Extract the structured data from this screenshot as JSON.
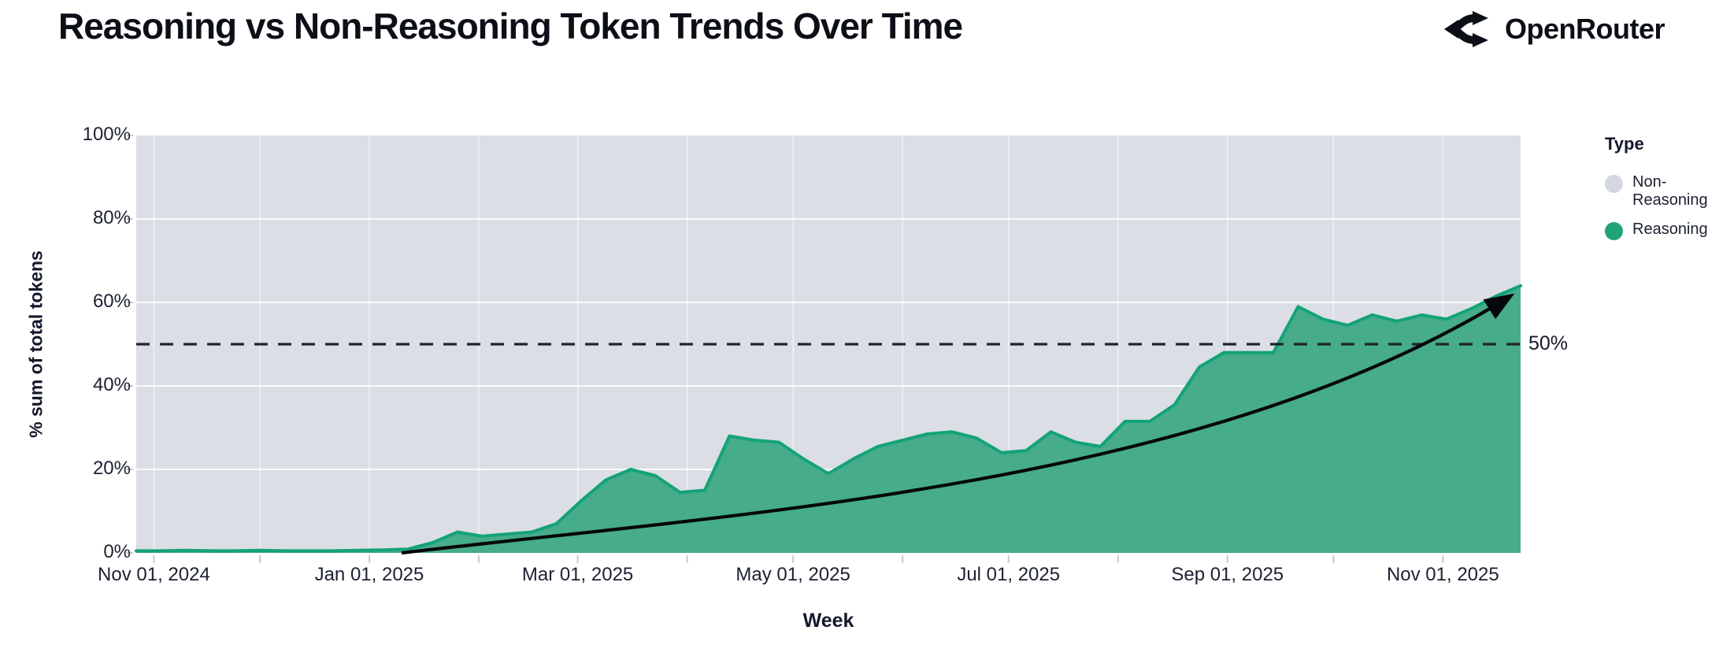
{
  "header": {
    "title": "Reasoning vs Non-Reasoning Token Trends Over Time",
    "brand": "OpenRouter"
  },
  "legend": {
    "title": "Type",
    "items": [
      {
        "label": "Non-Reasoning",
        "color": "#d3d7de"
      },
      {
        "label": "Reasoning",
        "color": "#22a278"
      }
    ]
  },
  "annotations": {
    "fifty_line_label": "50%",
    "trend_arrow": "accelerating growth arrow"
  },
  "chart_data": {
    "type": "area",
    "variant": "stacked-100-percent",
    "title": "Reasoning vs Non-Reasoning Token Trends Over Time",
    "xlabel": "Week",
    "ylabel": "% sum of total tokens",
    "ylim": [
      0,
      100
    ],
    "grid": true,
    "legend_position": "right",
    "x_domain": [
      "2024-10-27",
      "2025-11-23"
    ],
    "y_ticks": [
      "0%",
      "20%",
      "40%",
      "60%",
      "80%",
      "100%"
    ],
    "y_tick_values": [
      0,
      20,
      40,
      60,
      80,
      100
    ],
    "x_ticks": [
      {
        "date": "2024-11-01",
        "label": "Nov 01, 2024"
      },
      {
        "date": "2025-01-01",
        "label": "Jan 01, 2025"
      },
      {
        "date": "2025-03-01",
        "label": "Mar 01, 2025"
      },
      {
        "date": "2025-05-01",
        "label": "May 01, 2025"
      },
      {
        "date": "2025-07-01",
        "label": "Jul 01, 2025"
      },
      {
        "date": "2025-09-01",
        "label": "Sep 01, 2025"
      },
      {
        "date": "2025-11-01",
        "label": "Nov 01, 2025"
      }
    ],
    "x_month_ticks": [
      "2024-11-01",
      "2024-12-01",
      "2025-01-01",
      "2025-02-01",
      "2025-03-01",
      "2025-04-01",
      "2025-05-01",
      "2025-06-01",
      "2025-07-01",
      "2025-08-01",
      "2025-09-01",
      "2025-10-01",
      "2025-11-01"
    ],
    "fifty_line": {
      "value": 50,
      "label": "50%"
    },
    "series": [
      {
        "name": "Non-Reasoning",
        "color": "#dbdee5",
        "role": "remainder-to-100-percent"
      },
      {
        "name": "Reasoning",
        "color": "#41aa86",
        "edge_color": "#13a377",
        "unit": "% of total tokens",
        "x": [
          "2024-10-27",
          "2024-11-03",
          "2024-11-10",
          "2024-11-17",
          "2024-11-24",
          "2024-12-01",
          "2024-12-08",
          "2024-12-15",
          "2024-12-22",
          "2024-12-29",
          "2025-01-05",
          "2025-01-12",
          "2025-01-19",
          "2025-01-26",
          "2025-02-02",
          "2025-02-09",
          "2025-02-16",
          "2025-02-23",
          "2025-03-02",
          "2025-03-09",
          "2025-03-16",
          "2025-03-23",
          "2025-03-30",
          "2025-04-06",
          "2025-04-13",
          "2025-04-20",
          "2025-04-27",
          "2025-05-04",
          "2025-05-11",
          "2025-05-18",
          "2025-05-25",
          "2025-06-01",
          "2025-06-08",
          "2025-06-15",
          "2025-06-22",
          "2025-06-29",
          "2025-07-06",
          "2025-07-13",
          "2025-07-20",
          "2025-07-27",
          "2025-08-03",
          "2025-08-10",
          "2025-08-17",
          "2025-08-24",
          "2025-08-31",
          "2025-09-07",
          "2025-09-14",
          "2025-09-21",
          "2025-09-28",
          "2025-10-05",
          "2025-10-12",
          "2025-10-19",
          "2025-10-26",
          "2025-11-02",
          "2025-11-09",
          "2025-11-16",
          "2025-11-23"
        ],
        "values": [
          0.5,
          0.5,
          0.6,
          0.5,
          0.5,
          0.6,
          0.5,
          0.5,
          0.5,
          0.6,
          0.7,
          0.9,
          2.5,
          5,
          4,
          4.5,
          5,
          7,
          12.5,
          17.5,
          20,
          18.5,
          14.5,
          15,
          28,
          27,
          26.5,
          22.5,
          19,
          22.5,
          25.5,
          27,
          28.5,
          29,
          27.5,
          24,
          24.5,
          29,
          26.5,
          25.5,
          31.5,
          31.5,
          35.5,
          44.5,
          48,
          48,
          48,
          59,
          56,
          54.5,
          57,
          55.5,
          57,
          56,
          58.5,
          61.5,
          64
        ]
      }
    ]
  }
}
